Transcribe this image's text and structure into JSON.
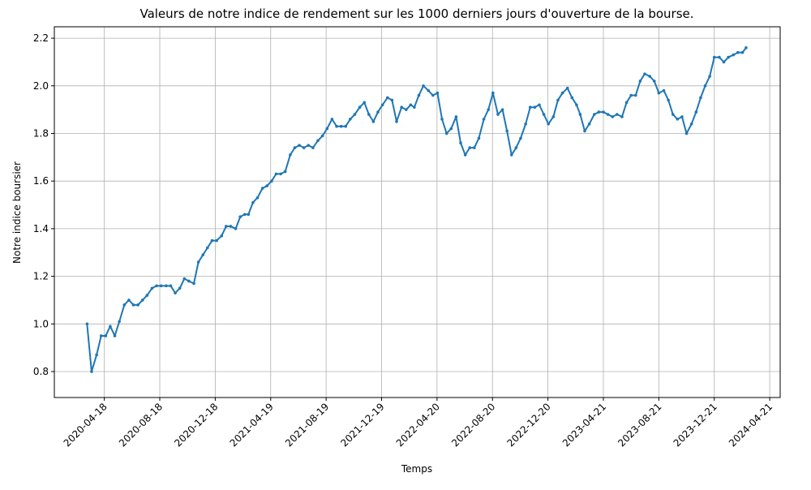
{
  "chart_data": {
    "type": "line",
    "title": "Valeurs de notre indice de rendement sur les 1000 derniers jours d'ouverture de la bourse.",
    "xlabel": "Temps",
    "ylabel": "Notre indice boursier",
    "color": "#1f77b4",
    "grid": true,
    "xlim": [
      "2019-12-30",
      "2024-05-14"
    ],
    "xticks": [
      "2020-04-18",
      "2020-08-18",
      "2020-12-18",
      "2021-04-19",
      "2021-08-19",
      "2021-12-19",
      "2022-04-20",
      "2022-08-20",
      "2022-12-20",
      "2023-04-21",
      "2023-08-21",
      "2023-12-21",
      "2024-04-21"
    ],
    "ylim": [
      0.691,
      2.248
    ],
    "yticks": [
      0.8,
      {
        "value": 1.0,
        "label": "1.0"
      },
      1.2,
      1.4,
      1.6,
      1.8,
      {
        "value": 2.0,
        "label": "2.0"
      },
      2.2
    ],
    "x": [
      "2020-03-11",
      "2020-03-21",
      "2020-04-01",
      "2020-04-11",
      "2020-04-21",
      "2020-05-01",
      "2020-05-11",
      "2020-05-21",
      "2020-06-01",
      "2020-06-11",
      "2020-06-21",
      "2020-07-01",
      "2020-07-11",
      "2020-07-21",
      "2020-08-01",
      "2020-08-11",
      "2020-08-21",
      "2020-09-01",
      "2020-09-11",
      "2020-09-21",
      "2020-10-01",
      "2020-10-11",
      "2020-10-21",
      "2020-11-01",
      "2020-11-11",
      "2020-11-21",
      "2020-12-01",
      "2020-12-11",
      "2020-12-21",
      "2021-01-01",
      "2021-01-11",
      "2021-01-21",
      "2021-02-01",
      "2021-02-11",
      "2021-02-21",
      "2021-03-01",
      "2021-03-11",
      "2021-03-21",
      "2021-04-01",
      "2021-04-11",
      "2021-04-21",
      "2021-05-01",
      "2021-05-11",
      "2021-05-21",
      "2021-06-01",
      "2021-06-11",
      "2021-06-21",
      "2021-07-01",
      "2021-07-11",
      "2021-07-21",
      "2021-08-01",
      "2021-08-11",
      "2021-08-21",
      "2021-09-01",
      "2021-09-11",
      "2021-09-21",
      "2021-10-01",
      "2021-10-11",
      "2021-10-21",
      "2021-11-01",
      "2021-11-11",
      "2021-11-21",
      "2021-12-01",
      "2021-12-11",
      "2021-12-21",
      "2022-01-01",
      "2022-01-11",
      "2022-01-21",
      "2022-02-01",
      "2022-02-11",
      "2022-02-21",
      "2022-03-01",
      "2022-03-11",
      "2022-03-21",
      "2022-04-01",
      "2022-04-11",
      "2022-04-21",
      "2022-05-01",
      "2022-05-11",
      "2022-05-21",
      "2022-06-01",
      "2022-06-11",
      "2022-06-21",
      "2022-07-01",
      "2022-07-11",
      "2022-07-21",
      "2022-08-01",
      "2022-08-11",
      "2022-08-21",
      "2022-09-01",
      "2022-09-11",
      "2022-09-21",
      "2022-10-01",
      "2022-10-11",
      "2022-10-21",
      "2022-11-01",
      "2022-11-11",
      "2022-11-21",
      "2022-12-01",
      "2022-12-11",
      "2022-12-21",
      "2023-01-01",
      "2023-01-11",
      "2023-01-21",
      "2023-02-01",
      "2023-02-11",
      "2023-02-21",
      "2023-03-01",
      "2023-03-11",
      "2023-03-21",
      "2023-04-01",
      "2023-04-11",
      "2023-04-21",
      "2023-05-01",
      "2023-05-11",
      "2023-05-21",
      "2023-06-01",
      "2023-06-11",
      "2023-06-21",
      "2023-07-01",
      "2023-07-11",
      "2023-07-21",
      "2023-08-01",
      "2023-08-11",
      "2023-08-21",
      "2023-09-01",
      "2023-09-11",
      "2023-09-21",
      "2023-10-01",
      "2023-10-11",
      "2023-10-21",
      "2023-11-01",
      "2023-11-11",
      "2023-11-21",
      "2023-12-01",
      "2023-12-11",
      "2023-12-21",
      "2024-01-01",
      "2024-01-11",
      "2024-01-21",
      "2024-02-01",
      "2024-02-11",
      "2024-02-21",
      "2024-02-29"
    ],
    "values": [
      1.0,
      0.8,
      0.87,
      0.95,
      0.95,
      0.99,
      0.95,
      1.01,
      1.08,
      1.1,
      1.08,
      1.08,
      1.1,
      1.12,
      1.15,
      1.16,
      1.16,
      1.16,
      1.16,
      1.13,
      1.15,
      1.19,
      1.18,
      1.17,
      1.26,
      1.29,
      1.32,
      1.35,
      1.35,
      1.37,
      1.41,
      1.41,
      1.4,
      1.45,
      1.46,
      1.46,
      1.51,
      1.53,
      1.57,
      1.58,
      1.6,
      1.63,
      1.63,
      1.64,
      1.71,
      1.74,
      1.75,
      1.74,
      1.75,
      1.74,
      1.77,
      1.79,
      1.82,
      1.86,
      1.83,
      1.83,
      1.83,
      1.86,
      1.88,
      1.91,
      1.93,
      1.88,
      1.85,
      1.89,
      1.92,
      1.95,
      1.94,
      1.85,
      1.91,
      1.9,
      1.92,
      1.91,
      1.96,
      2.0,
      1.98,
      1.96,
      1.97,
      1.86,
      1.8,
      1.82,
      1.87,
      1.76,
      1.71,
      1.74,
      1.74,
      1.78,
      1.86,
      1.9,
      1.97,
      1.88,
      1.9,
      1.81,
      1.71,
      1.74,
      1.78,
      1.84,
      1.91,
      1.91,
      1.92,
      1.88,
      1.84,
      1.87,
      1.94,
      1.97,
      1.99,
      1.95,
      1.92,
      1.88,
      1.81,
      1.84,
      1.88,
      1.89,
      1.89,
      1.88,
      1.87,
      1.88,
      1.87,
      1.93,
      1.96,
      1.96,
      2.02,
      2.05,
      2.04,
      2.02,
      1.97,
      1.98,
      1.94,
      1.88,
      1.86,
      1.87,
      1.8,
      1.84,
      1.89,
      1.95,
      2.0,
      2.04,
      2.12,
      2.12,
      2.1,
      2.12,
      2.13,
      2.14,
      2.14,
      2.16
    ]
  }
}
